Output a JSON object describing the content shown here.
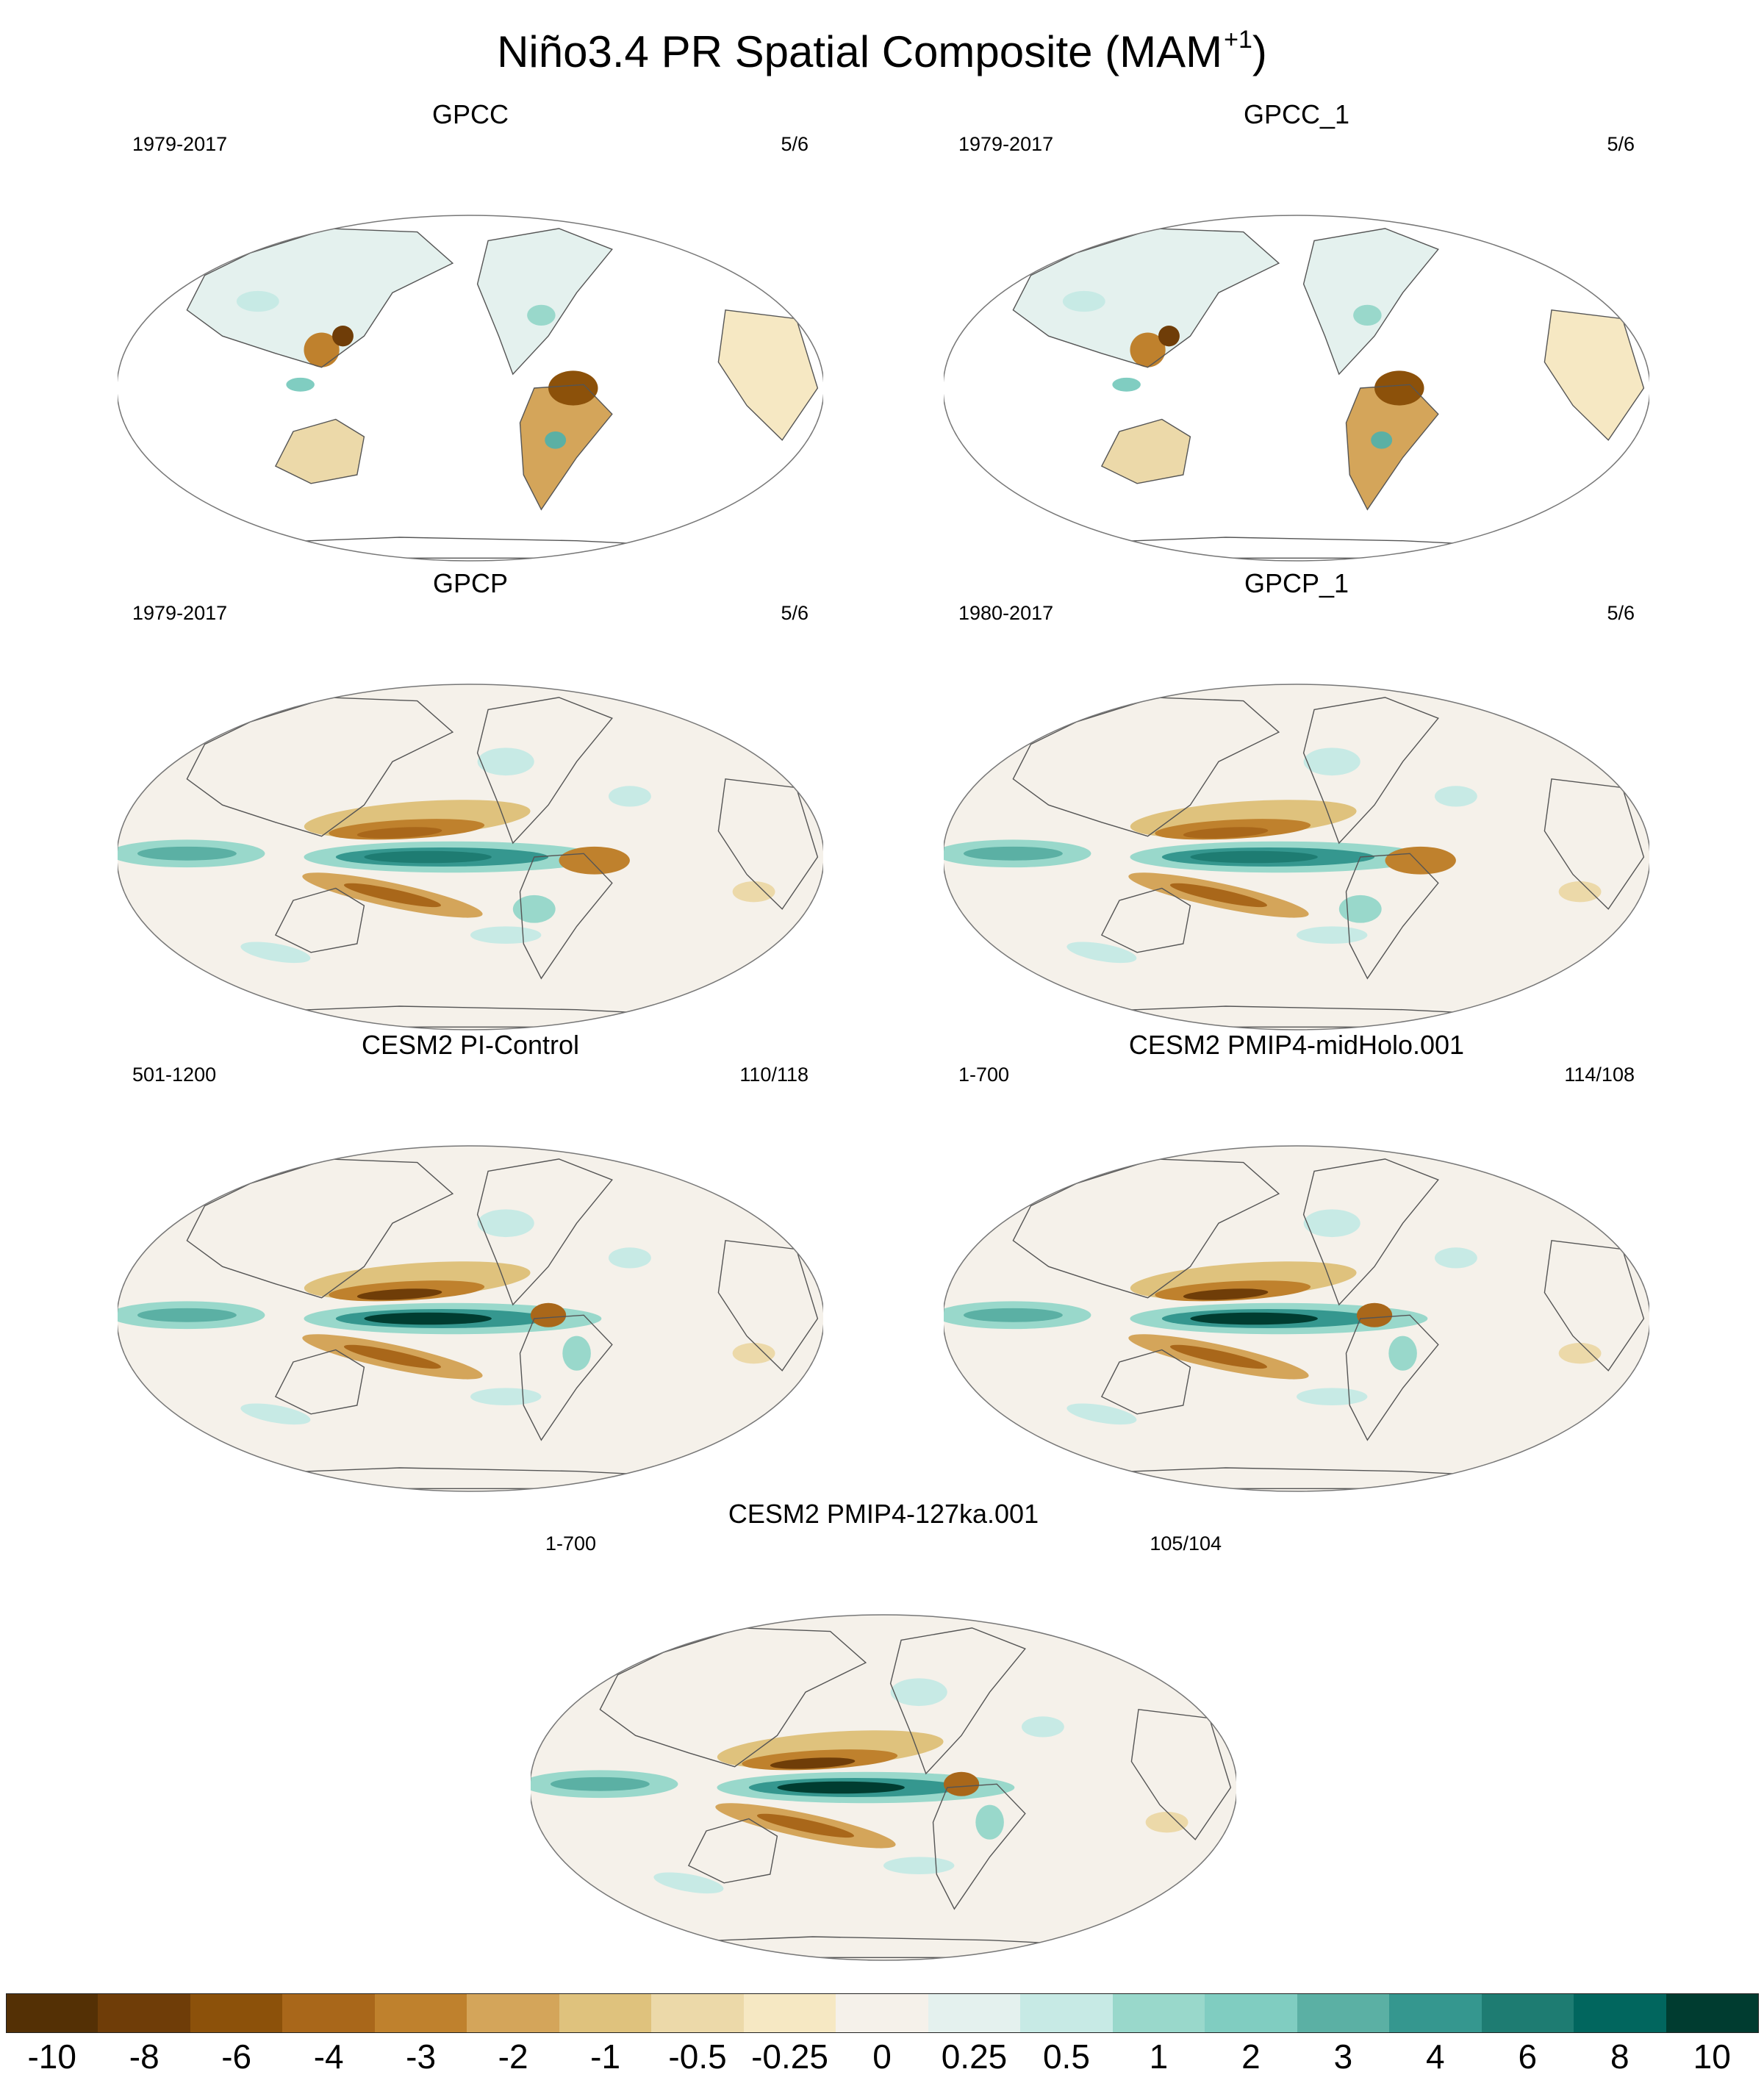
{
  "title": {
    "main": "Niño3.4 PR Spatial Composite (MAM",
    "superscript": "+1",
    "close": ")"
  },
  "panels": [
    {
      "title": "GPCC",
      "years": "1979-2017",
      "count": "5/6",
      "style": "land"
    },
    {
      "title": "GPCC_1",
      "years": "1979-2017",
      "count": "5/6",
      "style": "land"
    },
    {
      "title": "GPCP",
      "years": "1979-2017",
      "count": "5/6",
      "style": "obs"
    },
    {
      "title": "GPCP_1",
      "years": "1980-2017",
      "count": "5/6",
      "style": "obs"
    },
    {
      "title": "CESM2 PI-Control",
      "years": "501-1200",
      "count": "110/118",
      "style": "model"
    },
    {
      "title": "CESM2 PMIP4-midHolo.001",
      "years": "1-700",
      "count": "114/108",
      "style": "model"
    },
    {
      "title": "CESM2 PMIP4-127ka.001",
      "years": "1-700",
      "count": "105/104",
      "style": "model"
    }
  ],
  "colorbar": {
    "labels": [
      "-10",
      "-8",
      "-6",
      "-4",
      "-3",
      "-2",
      "-1",
      "-0.5",
      "-0.25",
      "0",
      "0.25",
      "0.5",
      "1",
      "2",
      "3",
      "4",
      "6",
      "8",
      "10"
    ],
    "colors": [
      "#543005",
      "#6f3d08",
      "#8c510a",
      "#a9671a",
      "#bf812d",
      "#d4a55a",
      "#dfc27d",
      "#ecd9a9",
      "#f6e8c3",
      "#f5f1ea",
      "#e4f1ee",
      "#c7eae5",
      "#99d8cb",
      "#80cdc1",
      "#5bb0a4",
      "#35978f",
      "#1e7c72",
      "#01665e",
      "#003c30"
    ]
  }
}
